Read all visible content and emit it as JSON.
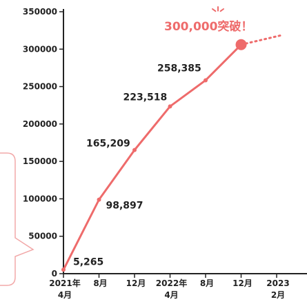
{
  "chart_data": {
    "type": "line",
    "title": "",
    "xlabel": "",
    "ylabel": "",
    "ylim": [
      0,
      350000
    ],
    "yticks": [
      0,
      50000,
      100000,
      150000,
      200000,
      250000,
      300000,
      350000
    ],
    "ytick_labels": [
      "0",
      "50000",
      "100000",
      "150000",
      "200000",
      "250000",
      "300000",
      "350000"
    ],
    "xticks": [
      {
        "line1": "2021年",
        "line2": "4月"
      },
      {
        "line1": "8月",
        "line2": ""
      },
      {
        "line1": "12月",
        "line2": ""
      },
      {
        "line1": "2022年",
        "line2": "4月"
      },
      {
        "line1": "8月",
        "line2": ""
      },
      {
        "line1": "12月",
        "line2": ""
      },
      {
        "line1": "2023",
        "line2": "2月"
      }
    ],
    "series": [
      {
        "x": [
          0,
          1,
          2,
          3,
          4,
          5
        ],
        "values": [
          5265,
          98897,
          165209,
          223518,
          258385,
          306000
        ],
        "labels": [
          "5,265",
          "98,897",
          "165,209",
          "223,518",
          "258,385",
          ""
        ]
      }
    ],
    "annotation": "300,000突破！",
    "line_color": "#ee6b6b",
    "axis_color": "#222222",
    "grid": false
  }
}
